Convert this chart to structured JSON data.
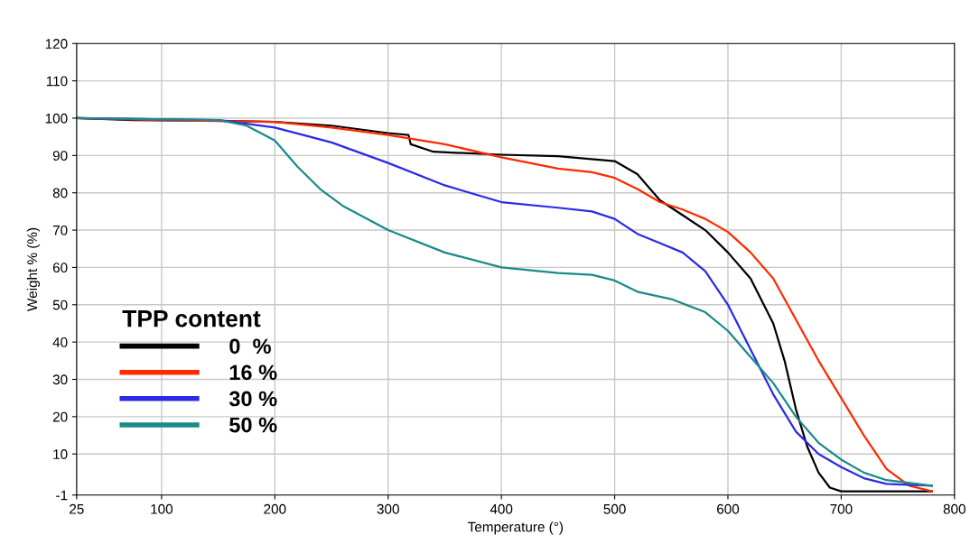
{
  "chart_data": {
    "type": "line",
    "xlabel": "Temperature (°)",
    "ylabel": "Weight % (%)",
    "legend_title": "TPP content",
    "xlim": [
      25,
      800
    ],
    "xticks": [
      25,
      100,
      200,
      300,
      400,
      500,
      600,
      700,
      800
    ],
    "ylim": [
      -1,
      120
    ],
    "yticks": [
      -1,
      10,
      20,
      30,
      40,
      50,
      60,
      70,
      80,
      90,
      100,
      110,
      120
    ],
    "grid": true,
    "legend": "left",
    "series": [
      {
        "name": "0  %",
        "color": "#000000",
        "x": [
          25,
          75,
          150,
          200,
          250,
          300,
          318,
          320,
          340,
          400,
          450,
          500,
          520,
          540,
          560,
          580,
          600,
          620,
          640,
          650,
          660,
          670,
          680,
          690,
          700,
          780
        ],
        "values": [
          100,
          99.5,
          99.3,
          99,
          98,
          96,
          95.5,
          93,
          91,
          90.2,
          89.8,
          88.5,
          85,
          78,
          74,
          70,
          64,
          57,
          45,
          35,
          22,
          12,
          5,
          1,
          0,
          0
        ]
      },
      {
        "name": "16 %",
        "color": "#ff2a00",
        "x": [
          25,
          100,
          200,
          250,
          300,
          350,
          400,
          450,
          480,
          500,
          520,
          540,
          560,
          580,
          600,
          620,
          640,
          660,
          680,
          700,
          720,
          740,
          760,
          780
        ],
        "values": [
          100,
          99.5,
          99,
          97.5,
          95.5,
          93,
          89.5,
          86.5,
          85.5,
          84,
          81,
          77.5,
          75.5,
          73,
          69.5,
          64,
          57,
          46,
          35,
          25,
          15,
          6,
          1.5,
          0
        ]
      },
      {
        "name": "30 %",
        "color": "#2a2ae8",
        "x": [
          25,
          150,
          200,
          250,
          300,
          350,
          400,
          450,
          480,
          500,
          520,
          540,
          560,
          580,
          600,
          620,
          640,
          660,
          680,
          700,
          720,
          740,
          780
        ],
        "values": [
          100,
          99.5,
          97.5,
          93.5,
          88,
          82,
          77.5,
          76,
          75,
          73,
          69,
          66.5,
          64,
          59,
          50,
          38,
          26,
          16,
          10,
          6.5,
          3.5,
          2,
          1.5
        ]
      },
      {
        "name": "50 %",
        "color": "#1a8a8a",
        "x": [
          25,
          150,
          175,
          200,
          220,
          240,
          260,
          300,
          350,
          400,
          450,
          480,
          500,
          520,
          550,
          580,
          600,
          620,
          640,
          660,
          680,
          700,
          720,
          740,
          780
        ],
        "values": [
          100,
          99.5,
          98,
          94,
          87,
          81,
          76.5,
          70,
          64,
          60,
          58.5,
          58,
          56.5,
          53.5,
          51.5,
          48,
          43,
          36,
          29,
          20,
          13,
          8.5,
          5,
          3,
          1.5
        ]
      }
    ]
  }
}
